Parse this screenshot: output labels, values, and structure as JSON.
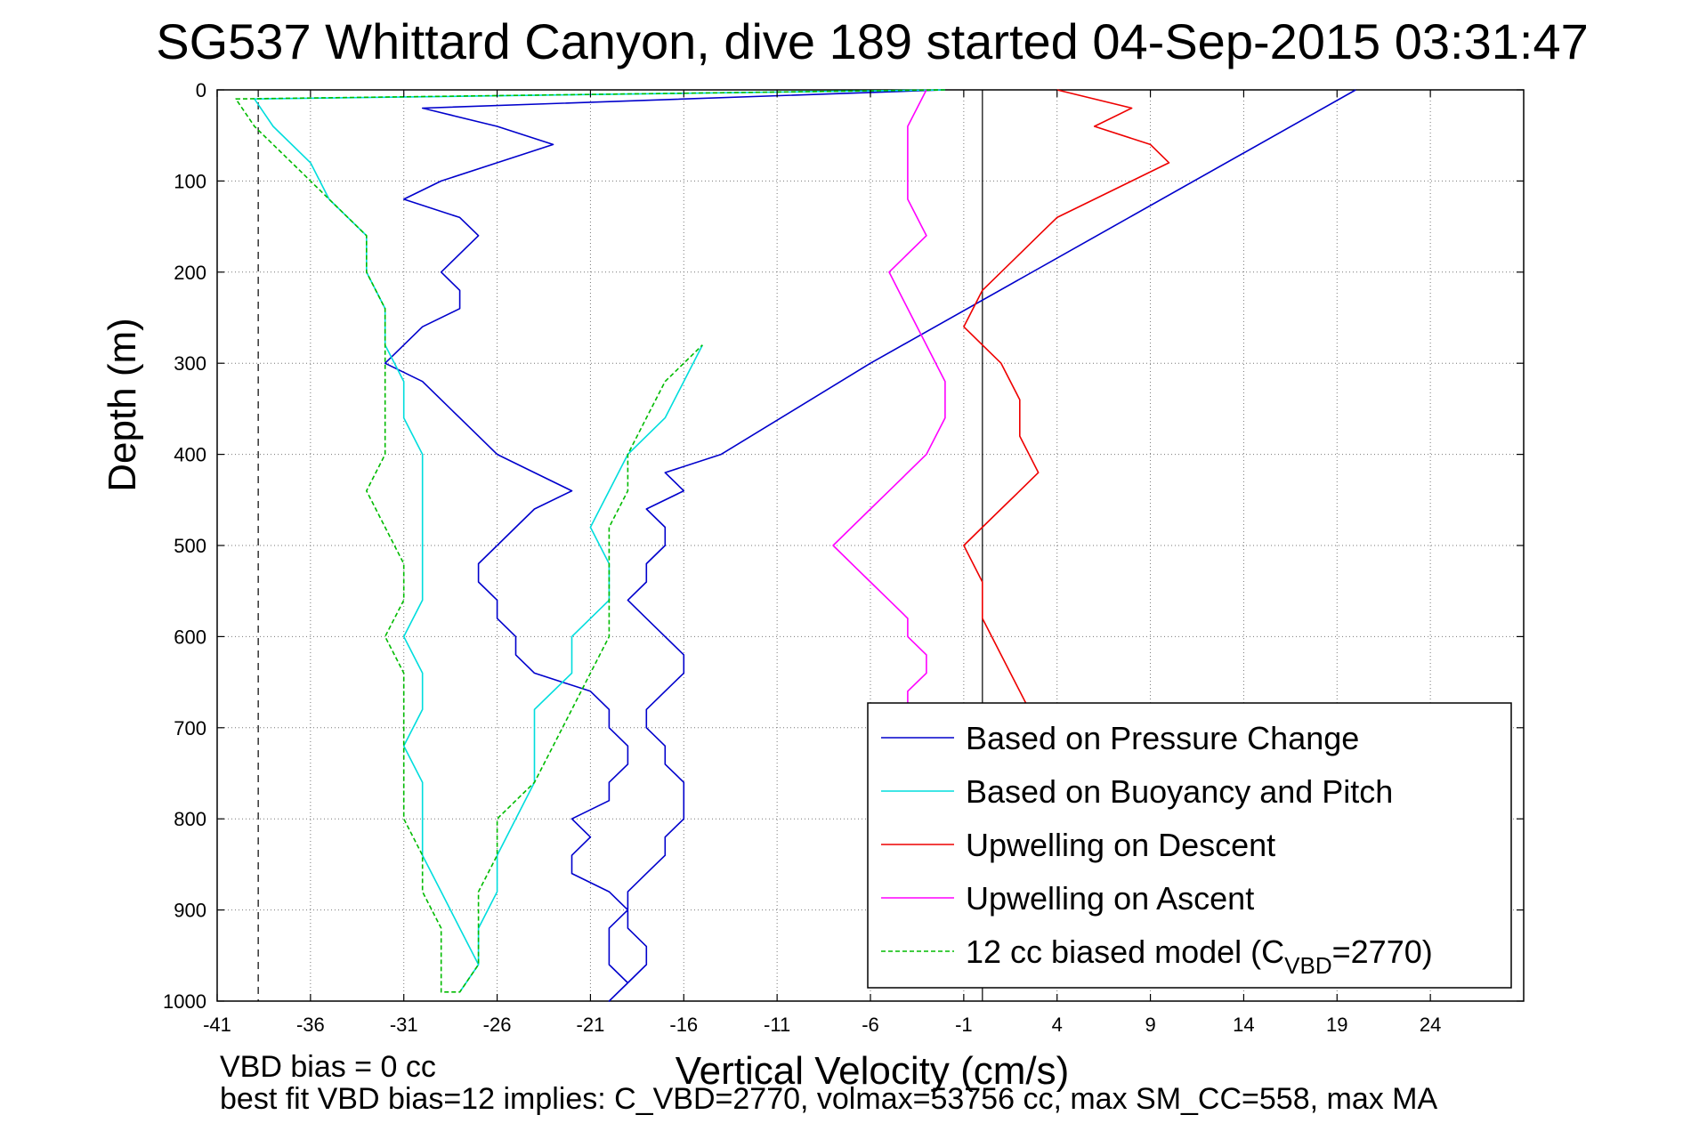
{
  "chart_data": {
    "type": "line",
    "title": "SG537 Whittard Canyon, dive 189 started 04-Sep-2015 03:31:47",
    "xlabel": "Vertical Velocity (cm/s)",
    "ylabel": "Depth (m)",
    "xlim": [
      -41,
      29
    ],
    "ylim": [
      1000,
      0
    ],
    "y_reversed": true,
    "grid": true,
    "legend_position": "lower-right",
    "x_ticks": [
      "-41",
      "-36",
      "-31",
      "-26",
      "-21",
      "-16",
      "-11",
      "-6",
      "-1",
      "4",
      "9",
      "14",
      "19",
      "24"
    ],
    "y_ticks": [
      "0",
      "100",
      "200",
      "300",
      "400",
      "500",
      "600",
      "700",
      "800",
      "900",
      "1000"
    ],
    "reference_lines": {
      "solid_x": 0,
      "dashed_x": -38.8
    },
    "series": [
      {
        "name": "Based on Pressure Change",
        "color": "#0000cc",
        "style": "solid",
        "x": [
          -2,
          -30,
          -26,
          -23,
          -26,
          -29,
          -31,
          -28,
          -27,
          -28,
          -29,
          -28,
          -28,
          -30,
          -31,
          -32,
          -30,
          -29,
          -28,
          -27,
          -26,
          -24,
          -22,
          -24,
          -25,
          -26,
          -27,
          -27,
          -26,
          -26,
          -25,
          -25,
          -24,
          -21,
          -20,
          -20,
          -19,
          -19,
          -20,
          -20,
          -22,
          -21,
          -22,
          -22,
          -20,
          -19,
          -19,
          -18,
          -18,
          -19,
          -20,
          -19,
          -20,
          -20,
          -20,
          -19,
          -19,
          -18,
          -17,
          -17,
          -16,
          -16,
          -16,
          -17,
          -17,
          -18,
          -18,
          -17,
          -16,
          -16,
          -17,
          -18,
          -19,
          -18,
          -18,
          -17,
          -17,
          -18,
          -16,
          -17,
          -14,
          -6,
          20
        ],
        "y": [
          0,
          20,
          40,
          60,
          80,
          100,
          120,
          140,
          160,
          180,
          200,
          220,
          240,
          260,
          280,
          300,
          320,
          340,
          360,
          380,
          400,
          420,
          440,
          460,
          480,
          500,
          520,
          540,
          560,
          580,
          600,
          620,
          640,
          660,
          680,
          700,
          720,
          740,
          760,
          780,
          800,
          820,
          840,
          860,
          880,
          900,
          920,
          940,
          960,
          980,
          1000,
          980,
          960,
          940,
          920,
          900,
          880,
          860,
          840,
          820,
          800,
          780,
          760,
          740,
          720,
          700,
          680,
          660,
          640,
          620,
          600,
          580,
          560,
          540,
          520,
          500,
          480,
          460,
          440,
          420,
          400,
          300,
          0
        ]
      },
      {
        "name": "Based on Buoyancy and Pitch",
        "color": "#00dddd",
        "style": "solid",
        "x": [
          -2,
          -39,
          -38,
          -36,
          -35,
          -33,
          -33,
          -32,
          -32,
          -31,
          -31,
          -30,
          -30,
          -30,
          -30,
          -30,
          -31,
          -30,
          -30,
          -31,
          -30,
          -30,
          -30,
          -29,
          -28,
          -27,
          -28,
          -28,
          -27,
          -27,
          -26,
          -26,
          -25,
          -24,
          -24,
          -24,
          -22,
          -22,
          -20,
          -20,
          -21,
          -20,
          -19,
          -17,
          -16,
          -15
        ],
        "y": [
          0,
          10,
          40,
          80,
          120,
          160,
          200,
          240,
          280,
          320,
          360,
          400,
          440,
          480,
          520,
          560,
          600,
          640,
          680,
          720,
          760,
          800,
          840,
          880,
          920,
          960,
          990,
          990,
          960,
          920,
          880,
          840,
          800,
          760,
          720,
          680,
          640,
          600,
          560,
          520,
          480,
          440,
          400,
          360,
          320,
          280
        ]
      },
      {
        "name": "Upwelling on Descent",
        "color": "#ee0000",
        "style": "solid",
        "x": [
          4,
          8,
          6,
          9,
          10,
          8,
          6,
          4,
          3,
          2,
          1,
          0,
          -1,
          1,
          2,
          2,
          3,
          2,
          1,
          0,
          -1,
          0,
          0,
          1,
          2,
          3,
          4,
          2
        ],
        "y": [
          0,
          20,
          40,
          60,
          80,
          100,
          120,
          140,
          160,
          180,
          200,
          220,
          260,
          300,
          340,
          380,
          420,
          440,
          460,
          480,
          500,
          540,
          580,
          620,
          660,
          700,
          760,
          800
        ]
      },
      {
        "name": "Upwelling on Ascent",
        "color": "#ff00ff",
        "style": "solid",
        "x": [
          -3,
          -4,
          -4,
          -4,
          -3,
          -5,
          -4,
          -3,
          -2,
          -2,
          -3,
          -4,
          -5,
          -6,
          -7,
          -8,
          -7,
          -6,
          -5,
          -4,
          -4,
          -3,
          -3,
          -4,
          -4,
          -3,
          -3
        ],
        "y": [
          0,
          40,
          80,
          120,
          160,
          200,
          240,
          280,
          320,
          360,
          400,
          420,
          440,
          460,
          480,
          500,
          520,
          540,
          560,
          580,
          600,
          620,
          640,
          660,
          680,
          700,
          720
        ]
      },
      {
        "name": "12 cc biased model (C_VBD=2770)",
        "color": "#00bb00",
        "style": "dashed",
        "x": [
          -2,
          -40,
          -39,
          -37,
          -35,
          -33,
          -33,
          -32,
          -32,
          -32,
          -32,
          -32,
          -33,
          -32,
          -31,
          -31,
          -32,
          -31,
          -31,
          -31,
          -31,
          -31,
          -30,
          -30,
          -29,
          -29,
          -29,
          -28,
          -27,
          -27,
          -27,
          -26,
          -26,
          -24,
          -23,
          -22,
          -21,
          -20,
          -20,
          -20,
          -20,
          -19,
          -19,
          -18,
          -17,
          -15
        ],
        "y": [
          0,
          10,
          40,
          80,
          120,
          160,
          200,
          240,
          280,
          320,
          360,
          400,
          440,
          480,
          520,
          560,
          600,
          640,
          680,
          720,
          760,
          800,
          840,
          880,
          920,
          960,
          990,
          990,
          960,
          920,
          880,
          840,
          800,
          760,
          720,
          680,
          640,
          600,
          560,
          520,
          480,
          440,
          400,
          360,
          320,
          280
        ]
      }
    ],
    "legend_entries": [
      "Based on Pressure Change",
      "Based on Buoyancy and Pitch",
      "Upwelling on Descent",
      "Upwelling on Ascent"
    ],
    "legend_last": {
      "prefix": "12 cc biased model (C",
      "sub": "VBD",
      "suffix": "=2770)"
    },
    "footer": {
      "line1": "VBD bias = 0 cc",
      "line2": "best fit VBD bias=12 implies: C_VBD=2770, volmax=53756 cc, max SM_CC=558, max MA"
    }
  }
}
